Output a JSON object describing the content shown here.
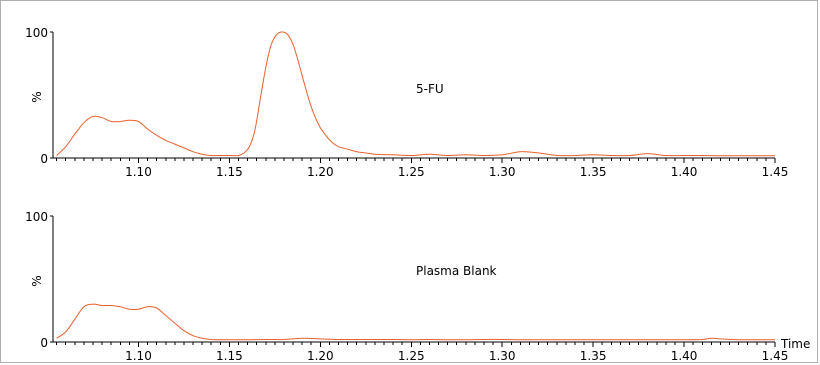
{
  "colors": {
    "trace": "#e8602c",
    "axis": "#000000",
    "frame": "#b0b0b0"
  },
  "chart_data": [
    {
      "type": "line",
      "title": "",
      "annotation": "5-FU",
      "xlabel": "",
      "ylabel": "%",
      "xlim": [
        1.053,
        1.45
      ],
      "ylim": [
        0,
        100
      ],
      "xticks": [
        "1.10",
        "1.15",
        "1.20",
        "1.25",
        "1.30",
        "1.35",
        "1.40",
        "1.45"
      ],
      "yticks": [
        "0",
        "100"
      ],
      "grid": false,
      "series": [
        {
          "x": [
            1.055,
            1.06,
            1.065,
            1.07,
            1.075,
            1.08,
            1.085,
            1.09,
            1.095,
            1.1,
            1.105,
            1.11,
            1.115,
            1.12,
            1.125,
            1.13,
            1.135,
            1.14,
            1.145,
            1.15,
            1.155,
            1.158,
            1.161,
            1.164,
            1.167,
            1.17,
            1.173,
            1.176,
            1.179,
            1.182,
            1.185,
            1.188,
            1.191,
            1.194,
            1.197,
            1.2,
            1.203,
            1.206,
            1.21,
            1.215,
            1.22,
            1.225,
            1.23,
            1.24,
            1.25,
            1.26,
            1.27,
            1.28,
            1.29,
            1.3,
            1.31,
            1.32,
            1.33,
            1.34,
            1.35,
            1.36,
            1.37,
            1.38,
            1.39,
            1.4,
            1.41,
            1.42,
            1.43,
            1.44,
            1.45
          ],
          "y": [
            2,
            9,
            19,
            28,
            33,
            32,
            29,
            29,
            30,
            29,
            23,
            18,
            14,
            11,
            8,
            5,
            3,
            2,
            2,
            2,
            2,
            4,
            9,
            22,
            47,
            72,
            90,
            98,
            100,
            98,
            90,
            76,
            60,
            45,
            33,
            24,
            18,
            13,
            9,
            7,
            5,
            4,
            3,
            2.5,
            2,
            3,
            2,
            2.5,
            2,
            2.5,
            5,
            4,
            2,
            2,
            2.5,
            2,
            2,
            3.5,
            2,
            2,
            2,
            1.8,
            1.8,
            1.8,
            1.8
          ]
        }
      ]
    },
    {
      "type": "line",
      "title": "",
      "annotation": "Plasma Blank",
      "xlabel": "Time",
      "ylabel": "%",
      "xlim": [
        1.053,
        1.45
      ],
      "ylim": [
        0,
        100
      ],
      "xticks": [
        "1.10",
        "1.15",
        "1.20",
        "1.25",
        "1.30",
        "1.35",
        "1.40",
        "1.45"
      ],
      "yticks": [
        "0",
        "100"
      ],
      "grid": false,
      "series": [
        {
          "x": [
            1.055,
            1.06,
            1.065,
            1.07,
            1.075,
            1.08,
            1.085,
            1.09,
            1.095,
            1.1,
            1.105,
            1.11,
            1.115,
            1.12,
            1.125,
            1.13,
            1.135,
            1.14,
            1.145,
            1.15,
            1.16,
            1.17,
            1.18,
            1.19,
            1.2,
            1.21,
            1.22,
            1.23,
            1.24,
            1.25,
            1.26,
            1.27,
            1.28,
            1.29,
            1.3,
            1.31,
            1.32,
            1.33,
            1.34,
            1.35,
            1.36,
            1.37,
            1.38,
            1.39,
            1.4,
            1.41,
            1.415,
            1.42,
            1.43,
            1.44,
            1.45
          ],
          "y": [
            3,
            8,
            18,
            28,
            30,
            29,
            29,
            28,
            26,
            26,
            28,
            27,
            21,
            15,
            9,
            5,
            3,
            2,
            1.8,
            1.8,
            1.8,
            2,
            2,
            3,
            2.5,
            2,
            2,
            2,
            2,
            1.8,
            2,
            1.8,
            1.8,
            2,
            2,
            1.8,
            1.8,
            1.8,
            1.8,
            1.8,
            1.8,
            1.8,
            1.8,
            1.8,
            1.8,
            2,
            3,
            2.5,
            1.8,
            1.8,
            1.8
          ]
        }
      ]
    }
  ]
}
